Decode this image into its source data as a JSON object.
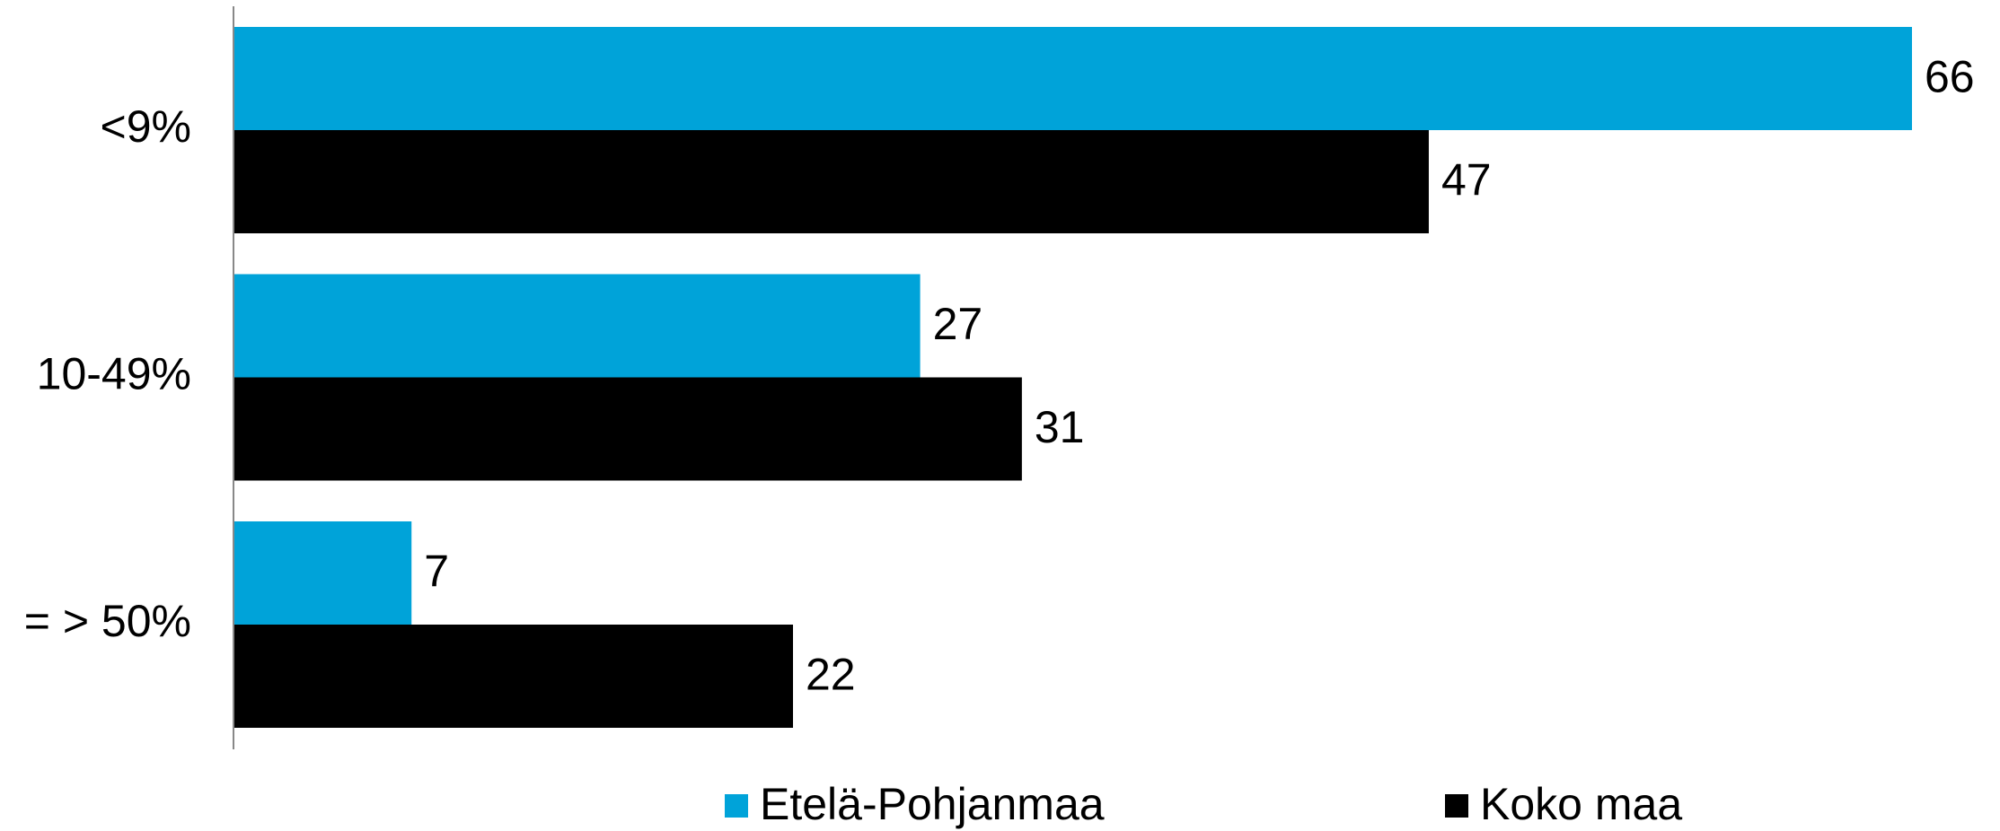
{
  "chart_data": {
    "type": "hbar",
    "categories": [
      "<9%",
      "10-49%",
      "= > 50%"
    ],
    "series": [
      {
        "name": "Etelä-Pohjanmaa",
        "color": "#00a3d9",
        "values": [
          66,
          27,
          7
        ]
      },
      {
        "name": "Koko maa",
        "color": "#000000",
        "values": [
          47,
          31,
          22
        ]
      }
    ]
  }
}
